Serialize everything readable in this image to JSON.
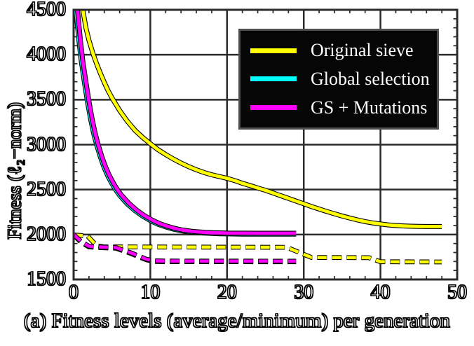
{
  "figure": {
    "caption": "(a) Fitness levels (average/minimum) per generation"
  },
  "axes": {
    "ylabel": "Fitness (ℓ₂−norm)",
    "x_tick_labels": [
      "0",
      "10",
      "20",
      "30",
      "40",
      "50"
    ],
    "y_tick_labels": [
      "1500",
      "2000",
      "2500",
      "3000",
      "3500",
      "4000",
      "4500"
    ]
  },
  "legend": {
    "entries": [
      {
        "label": "Original sieve",
        "color": "#ffff00"
      },
      {
        "label": "Global selection",
        "color": "#00ffff"
      },
      {
        "label": "GS + Mutations",
        "color": "#ff00ff"
      }
    ],
    "background": "#060606",
    "border_color": "#4f4f4f",
    "text_color": "#ffffff",
    "position": "top-right"
  },
  "chart_data": {
    "type": "line",
    "title": "",
    "xlabel": "(a) Fitness levels (average/minimum) per generation",
    "ylabel": "Fitness (ℓ₂−norm)",
    "xlim": [
      0,
      50
    ],
    "ylim": [
      1500,
      4500
    ],
    "grid": true,
    "x_ticks": [
      0,
      10,
      20,
      30,
      40,
      50
    ],
    "y_ticks": [
      1500,
      2000,
      2500,
      3000,
      3500,
      4000,
      4500
    ],
    "x_gridlines": [
      10,
      20,
      30,
      40
    ],
    "y_gridlines": [
      2000,
      2500,
      3000,
      3500,
      4000
    ],
    "x_minor_step": 2,
    "y_minor_step": 100,
    "grid_color": "#2b2b2b",
    "series": [
      {
        "name": "Original sieve (average)",
        "legend_label": "Original sieve",
        "color": "#ffff00",
        "style": "solid",
        "points": [
          [
            1.2,
            4500
          ],
          [
            1.6,
            4300
          ],
          [
            2,
            4160
          ],
          [
            2.5,
            4020
          ],
          [
            3,
            3900
          ],
          [
            3.5,
            3790
          ],
          [
            4,
            3690
          ],
          [
            4.5,
            3600
          ],
          [
            5,
            3520
          ],
          [
            6,
            3380
          ],
          [
            7,
            3260
          ],
          [
            8,
            3160
          ],
          [
            9,
            3080
          ],
          [
            10,
            3010
          ],
          [
            11,
            2945
          ],
          [
            12,
            2890
          ],
          [
            13,
            2840
          ],
          [
            14,
            2795
          ],
          [
            15,
            2755
          ],
          [
            16,
            2720
          ],
          [
            17,
            2690
          ],
          [
            18,
            2665
          ],
          [
            19,
            2645
          ],
          [
            20,
            2625
          ],
          [
            21,
            2600
          ],
          [
            22,
            2570
          ],
          [
            23,
            2545
          ],
          [
            24,
            2518
          ],
          [
            25,
            2492
          ],
          [
            26,
            2462
          ],
          [
            27,
            2432
          ],
          [
            28,
            2402
          ],
          [
            29,
            2372
          ],
          [
            30,
            2342
          ],
          [
            31,
            2312
          ],
          [
            32,
            2284
          ],
          [
            33,
            2257
          ],
          [
            34,
            2231
          ],
          [
            35,
            2206
          ],
          [
            36,
            2183
          ],
          [
            37,
            2162
          ],
          [
            38,
            2144
          ],
          [
            39,
            2129
          ],
          [
            40,
            2117
          ],
          [
            41,
            2107
          ],
          [
            42,
            2100
          ],
          [
            43,
            2095
          ],
          [
            44,
            2092
          ],
          [
            45,
            2090
          ],
          [
            46,
            2089
          ],
          [
            47,
            2089
          ],
          [
            48,
            2089
          ]
        ]
      },
      {
        "name": "Global selection (average)",
        "legend_label": "Global selection",
        "color": "#00ffff",
        "style": "solid",
        "points": [
          [
            0.3,
            4500
          ],
          [
            0.7,
            4150
          ],
          [
            1,
            3930
          ],
          [
            1.4,
            3700
          ],
          [
            1.8,
            3480
          ],
          [
            2.2,
            3290
          ],
          [
            2.6,
            3130
          ],
          [
            3,
            3000
          ],
          [
            3.5,
            2860
          ],
          [
            4,
            2740
          ],
          [
            4.5,
            2645
          ],
          [
            5,
            2565
          ],
          [
            5.5,
            2495
          ],
          [
            6,
            2435
          ],
          [
            7,
            2340
          ],
          [
            8,
            2265
          ],
          [
            9,
            2205
          ],
          [
            10,
            2155
          ],
          [
            11,
            2115
          ],
          [
            12,
            2085
          ],
          [
            13,
            2060
          ],
          [
            14,
            2042
          ],
          [
            15,
            2030
          ],
          [
            16,
            2022
          ],
          [
            17,
            2016
          ],
          [
            18,
            2012
          ],
          [
            19,
            2009
          ],
          [
            20,
            2007
          ],
          [
            22,
            2005
          ],
          [
            24,
            2004
          ],
          [
            26,
            2004
          ],
          [
            29,
            2004
          ]
        ]
      },
      {
        "name": "GS + Mutations (average)",
        "legend_label": "GS + Mutations",
        "color": "#ff00ff",
        "style": "solid",
        "points": [
          [
            0.5,
            4500
          ],
          [
            0.9,
            4150
          ],
          [
            1.2,
            3930
          ],
          [
            1.6,
            3700
          ],
          [
            2,
            3480
          ],
          [
            2.4,
            3290
          ],
          [
            2.8,
            3130
          ],
          [
            3.2,
            3000
          ],
          [
            3.7,
            2860
          ],
          [
            4.2,
            2745
          ],
          [
            4.7,
            2650
          ],
          [
            5.2,
            2570
          ],
          [
            5.7,
            2500
          ],
          [
            6.2,
            2442
          ],
          [
            7.2,
            2348
          ],
          [
            8.2,
            2272
          ],
          [
            9.2,
            2212
          ],
          [
            10.2,
            2162
          ],
          [
            11.2,
            2122
          ],
          [
            12.2,
            2092
          ],
          [
            13.2,
            2068
          ],
          [
            14.2,
            2050
          ],
          [
            15.2,
            2038
          ],
          [
            16.2,
            2030
          ],
          [
            17.2,
            2024
          ],
          [
            18.2,
            2020
          ],
          [
            19.2,
            2018
          ],
          [
            20,
            2016
          ],
          [
            22,
            2015
          ],
          [
            24,
            2014
          ],
          [
            26,
            2014
          ],
          [
            29,
            2014
          ]
        ]
      },
      {
        "name": "Global selection (minimum)",
        "legend_label": "Global selection",
        "color": "#00ffff",
        "style": "dashed",
        "points": [
          [
            0,
            1995
          ],
          [
            1,
            1912
          ],
          [
            2,
            1862
          ],
          [
            3,
            1855
          ],
          [
            5.5,
            1848
          ],
          [
            6.5,
            1818
          ],
          [
            7.5,
            1788
          ],
          [
            8.5,
            1752
          ],
          [
            9.5,
            1718
          ],
          [
            10.5,
            1700
          ],
          [
            12,
            1698
          ],
          [
            29,
            1697
          ]
        ]
      },
      {
        "name": "Original sieve (minimum)",
        "legend_label": "Original sieve",
        "color": "#ffff00",
        "style": "dashed",
        "points": [
          [
            0,
            1995
          ],
          [
            1.8,
            1985
          ],
          [
            3,
            1875
          ],
          [
            4,
            1862
          ],
          [
            27.8,
            1858
          ],
          [
            31,
            1745
          ],
          [
            38.5,
            1742
          ],
          [
            40,
            1697
          ],
          [
            48,
            1695
          ]
        ]
      },
      {
        "name": "GS + Mutations (minimum)",
        "legend_label": "GS + Mutations",
        "color": "#ff00ff",
        "style": "dashed",
        "points": [
          [
            0,
            2000
          ],
          [
            1,
            1920
          ],
          [
            2,
            1870
          ],
          [
            3,
            1862
          ],
          [
            5.5,
            1855
          ],
          [
            6.5,
            1825
          ],
          [
            7.5,
            1795
          ],
          [
            8.5,
            1760
          ],
          [
            9.5,
            1725
          ],
          [
            10.5,
            1707
          ],
          [
            12,
            1705
          ],
          [
            29,
            1703
          ]
        ]
      }
    ]
  }
}
